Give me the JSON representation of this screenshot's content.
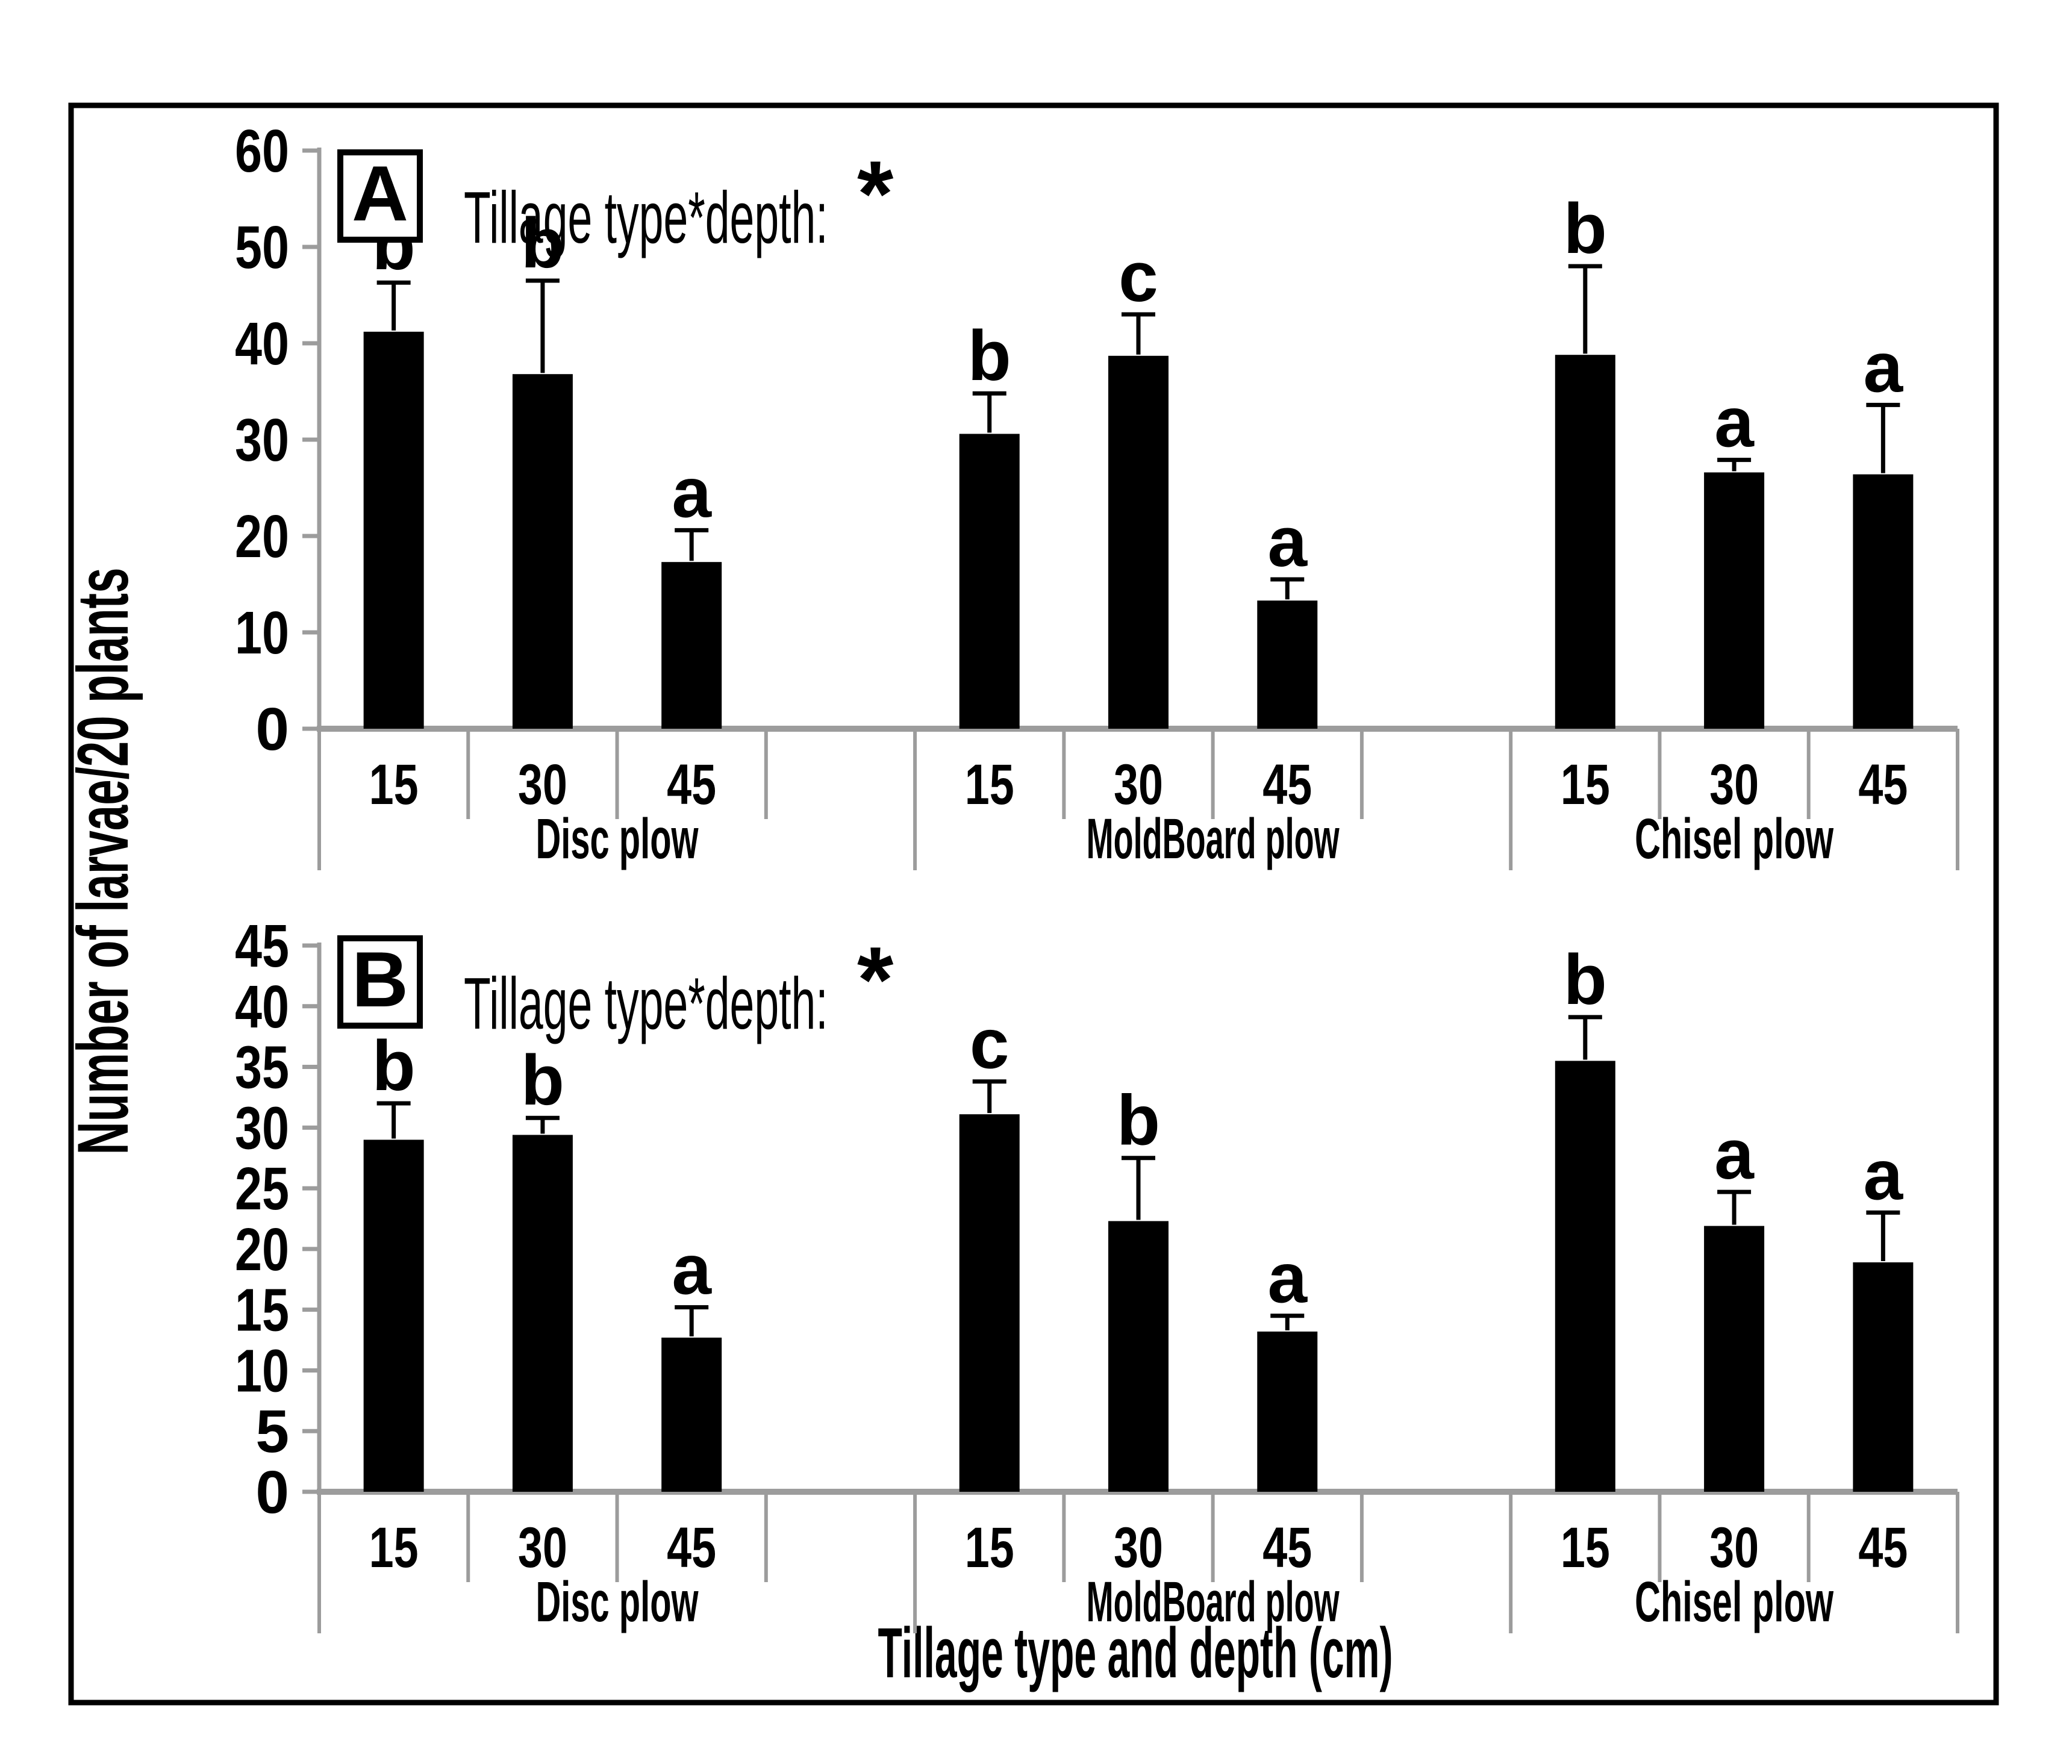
{
  "figure": {
    "y_axis_title": "Number of larvae/20 plants",
    "x_axis_title": "Tillage type and depth (cm)",
    "colors": {
      "bar": "#000000",
      "axis_line": "#9c9c9c",
      "error_bar": "#000000",
      "panel_border": "#000000",
      "text": "#000000",
      "background": "#ffffff"
    }
  },
  "chart_data": [
    {
      "type": "bar",
      "panel_label": "A",
      "title": "Tillage type*depth:",
      "significance": "*",
      "ylabel": "Number of larvae/20 plants",
      "xlabel": "Tillage type and depth (cm)",
      "ylim": [
        0,
        60
      ],
      "ytick_interval": 10,
      "yticks": [
        "60",
        "50",
        "40",
        "30",
        "20",
        "10",
        "0"
      ],
      "categories": [
        "15",
        "30",
        "45"
      ],
      "grid": false,
      "legend": "none",
      "groups": [
        {
          "label": "Disc plow",
          "bars": [
            {
              "depth": "15",
              "value": 41.2,
              "error_top": 46.3,
              "letter": "b"
            },
            {
              "depth": "30",
              "value": 36.8,
              "error_top": 46.5,
              "letter": "b"
            },
            {
              "depth": "45",
              "value": 17.3,
              "error_top": 20.6,
              "letter": "a"
            }
          ]
        },
        {
          "label": "MoldBoard plow",
          "bars": [
            {
              "depth": "15",
              "value": 30.6,
              "error_top": 34.8,
              "letter": "b"
            },
            {
              "depth": "30",
              "value": 38.7,
              "error_top": 43.0,
              "letter": "c"
            },
            {
              "depth": "45",
              "value": 13.3,
              "error_top": 15.5,
              "letter": "a"
            }
          ]
        },
        {
          "label": "Chisel plow",
          "bars": [
            {
              "depth": "15",
              "value": 38.8,
              "error_top": 48.0,
              "letter": "b"
            },
            {
              "depth": "30",
              "value": 26.6,
              "error_top": 27.9,
              "letter": "a"
            },
            {
              "depth": "45",
              "value": 26.4,
              "error_top": 33.6,
              "letter": "a"
            }
          ]
        }
      ]
    },
    {
      "type": "bar",
      "panel_label": "B",
      "title": "Tillage type*depth:",
      "significance": "*",
      "ylabel": "Number of larvae/20 plants",
      "xlabel": "Tillage type and depth (cm)",
      "ylim": [
        0,
        45
      ],
      "ytick_interval": 5,
      "yticks": [
        "45",
        "40",
        "35",
        "30",
        "25",
        "20",
        "15",
        "10",
        "5",
        "0"
      ],
      "categories": [
        "15",
        "30",
        "45"
      ],
      "grid": false,
      "legend": "none",
      "groups": [
        {
          "label": "Disc plow",
          "bars": [
            {
              "depth": "15",
              "value": 29.0,
              "error_top": 32.0,
              "letter": "b"
            },
            {
              "depth": "30",
              "value": 29.4,
              "error_top": 30.8,
              "letter": "b"
            },
            {
              "depth": "45",
              "value": 12.7,
              "error_top": 15.2,
              "letter": "a"
            }
          ]
        },
        {
          "label": "MoldBoard plow",
          "bars": [
            {
              "depth": "15",
              "value": 31.1,
              "error_top": 33.8,
              "letter": "c"
            },
            {
              "depth": "30",
              "value": 22.3,
              "error_top": 27.5,
              "letter": "b"
            },
            {
              "depth": "45",
              "value": 13.2,
              "error_top": 14.5,
              "letter": "a"
            }
          ]
        },
        {
          "label": "Chisel plow",
          "bars": [
            {
              "depth": "15",
              "value": 35.5,
              "error_top": 39.1,
              "letter": "b"
            },
            {
              "depth": "30",
              "value": 21.9,
              "error_top": 24.7,
              "letter": "a"
            },
            {
              "depth": "45",
              "value": 18.9,
              "error_top": 23.0,
              "letter": "a"
            }
          ]
        }
      ]
    }
  ]
}
